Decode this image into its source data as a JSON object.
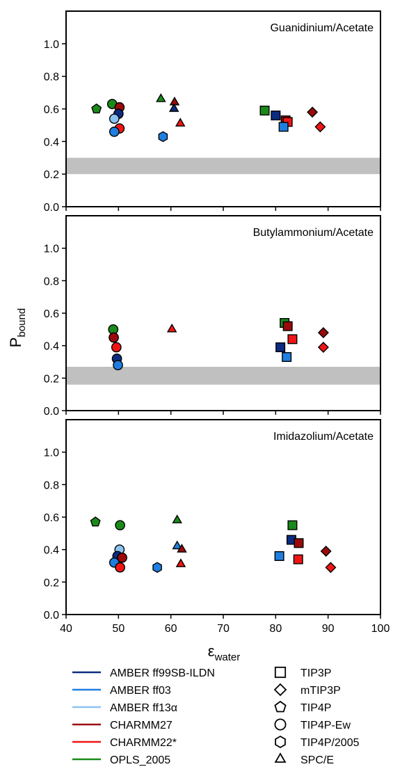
{
  "chart_data": [
    {
      "type": "scatter",
      "title": "Guanidinium/Acetate",
      "xlim": [
        40,
        100
      ],
      "ylim": [
        0,
        1.2
      ],
      "band": [
        0.2,
        0.3
      ],
      "points": [
        {
          "x": 45.8,
          "y": 0.6,
          "force_field": "OPLS_2005",
          "water_model": "TIP4P"
        },
        {
          "x": 48.8,
          "y": 0.63,
          "force_field": "OPLS_2005",
          "water_model": "TIP4P-Ew"
        },
        {
          "x": 50.2,
          "y": 0.61,
          "force_field": "CHARMM27",
          "water_model": "TIP4P-Ew"
        },
        {
          "x": 50.0,
          "y": 0.57,
          "force_field": "AMBER ff99SB-ILDN",
          "water_model": "TIP4P-Ew"
        },
        {
          "x": 49.2,
          "y": 0.54,
          "force_field": "AMBER ff13α",
          "water_model": "TIP4P-Ew"
        },
        {
          "x": 50.2,
          "y": 0.48,
          "force_field": "CHARMM22*",
          "water_model": "TIP4P-Ew"
        },
        {
          "x": 49.2,
          "y": 0.46,
          "force_field": "AMBER ff03",
          "water_model": "TIP4P-Ew"
        },
        {
          "x": 58.5,
          "y": 0.43,
          "force_field": "AMBER ff03",
          "water_model": "TIP4P/2005"
        },
        {
          "x": 58.1,
          "y": 0.66,
          "force_field": "OPLS_2005",
          "water_model": "SPC/E"
        },
        {
          "x": 60.7,
          "y": 0.64,
          "force_field": "CHARMM27",
          "water_model": "SPC/E"
        },
        {
          "x": 60.6,
          "y": 0.6,
          "force_field": "AMBER ff99SB-ILDN",
          "water_model": "SPC/E"
        },
        {
          "x": 61.8,
          "y": 0.51,
          "force_field": "CHARMM22*",
          "water_model": "SPC/E"
        },
        {
          "x": 77.9,
          "y": 0.59,
          "force_field": "OPLS_2005",
          "water_model": "TIP3P"
        },
        {
          "x": 80.0,
          "y": 0.56,
          "force_field": "AMBER ff99SB-ILDN",
          "water_model": "TIP3P"
        },
        {
          "x": 81.9,
          "y": 0.53,
          "force_field": "CHARMM27",
          "water_model": "TIP3P"
        },
        {
          "x": 82.3,
          "y": 0.52,
          "force_field": "CHARMM22*",
          "water_model": "TIP3P"
        },
        {
          "x": 81.5,
          "y": 0.49,
          "force_field": "AMBER ff03",
          "water_model": "TIP3P"
        },
        {
          "x": 87.0,
          "y": 0.58,
          "force_field": "CHARMM27",
          "water_model": "mTIP3P"
        },
        {
          "x": 88.5,
          "y": 0.49,
          "force_field": "CHARMM22*",
          "water_model": "mTIP3P"
        }
      ]
    },
    {
      "type": "scatter",
      "title": "Butylammonium/Acetate",
      "xlim": [
        40,
        100
      ],
      "ylim": [
        0,
        1.2
      ],
      "band": [
        0.16,
        0.27
      ],
      "points": [
        {
          "x": 49.0,
          "y": 0.5,
          "force_field": "OPLS_2005",
          "water_model": "TIP4P-Ew"
        },
        {
          "x": 49.1,
          "y": 0.45,
          "force_field": "CHARMM27",
          "water_model": "TIP4P-Ew"
        },
        {
          "x": 49.6,
          "y": 0.39,
          "force_field": "CHARMM22*",
          "water_model": "TIP4P-Ew"
        },
        {
          "x": 49.7,
          "y": 0.32,
          "force_field": "AMBER ff99SB-ILDN",
          "water_model": "TIP4P-Ew"
        },
        {
          "x": 49.9,
          "y": 0.28,
          "force_field": "AMBER ff03",
          "water_model": "TIP4P-Ew"
        },
        {
          "x": 60.2,
          "y": 0.5,
          "force_field": "CHARMM22*",
          "water_model": "SPC/E"
        },
        {
          "x": 81.7,
          "y": 0.54,
          "force_field": "OPLS_2005",
          "water_model": "TIP3P"
        },
        {
          "x": 82.3,
          "y": 0.52,
          "force_field": "CHARMM27",
          "water_model": "TIP3P"
        },
        {
          "x": 80.9,
          "y": 0.39,
          "force_field": "AMBER ff99SB-ILDN",
          "water_model": "TIP3P"
        },
        {
          "x": 83.2,
          "y": 0.44,
          "force_field": "CHARMM22*",
          "water_model": "TIP3P"
        },
        {
          "x": 82.1,
          "y": 0.33,
          "force_field": "AMBER ff03",
          "water_model": "TIP3P"
        },
        {
          "x": 89.1,
          "y": 0.48,
          "force_field": "CHARMM27",
          "water_model": "mTIP3P"
        },
        {
          "x": 89.1,
          "y": 0.39,
          "force_field": "CHARMM22*",
          "water_model": "mTIP3P"
        }
      ]
    },
    {
      "type": "scatter",
      "title": "Imidazolium/Acetate",
      "xlim": [
        40,
        100
      ],
      "ylim": [
        0,
        1.2
      ],
      "xlabel": "εwater",
      "points": [
        {
          "x": 45.6,
          "y": 0.57,
          "force_field": "OPLS_2005",
          "water_model": "TIP4P"
        },
        {
          "x": 50.3,
          "y": 0.55,
          "force_field": "OPLS_2005",
          "water_model": "TIP4P-Ew"
        },
        {
          "x": 50.2,
          "y": 0.4,
          "force_field": "AMBER ff13α",
          "water_model": "TIP4P-Ew"
        },
        {
          "x": 49.8,
          "y": 0.36,
          "force_field": "AMBER ff99SB-ILDN",
          "water_model": "TIP4P-Ew"
        },
        {
          "x": 50.7,
          "y": 0.35,
          "force_field": "CHARMM27",
          "water_model": "TIP4P-Ew"
        },
        {
          "x": 49.2,
          "y": 0.32,
          "force_field": "AMBER ff03",
          "water_model": "TIP4P-Ew"
        },
        {
          "x": 50.3,
          "y": 0.29,
          "force_field": "CHARMM22*",
          "water_model": "TIP4P-Ew"
        },
        {
          "x": 57.4,
          "y": 0.29,
          "force_field": "AMBER ff03",
          "water_model": "TIP4P/2005"
        },
        {
          "x": 61.2,
          "y": 0.58,
          "force_field": "OPLS_2005",
          "water_model": "SPC/E"
        },
        {
          "x": 61.2,
          "y": 0.42,
          "force_field": "AMBER ff03",
          "water_model": "SPC/E"
        },
        {
          "x": 62.1,
          "y": 0.4,
          "force_field": "CHARMM27",
          "water_model": "SPC/E"
        },
        {
          "x": 61.9,
          "y": 0.31,
          "force_field": "CHARMM22*",
          "water_model": "SPC/E"
        },
        {
          "x": 83.2,
          "y": 0.55,
          "force_field": "OPLS_2005",
          "water_model": "TIP3P"
        },
        {
          "x": 83.0,
          "y": 0.46,
          "force_field": "AMBER ff99SB-ILDN",
          "water_model": "TIP3P"
        },
        {
          "x": 84.4,
          "y": 0.44,
          "force_field": "CHARMM27",
          "water_model": "TIP3P"
        },
        {
          "x": 80.7,
          "y": 0.36,
          "force_field": "AMBER ff03",
          "water_model": "TIP3P"
        },
        {
          "x": 84.3,
          "y": 0.34,
          "force_field": "CHARMM22*",
          "water_model": "TIP3P"
        },
        {
          "x": 89.6,
          "y": 0.39,
          "force_field": "CHARMM27",
          "water_model": "mTIP3P"
        },
        {
          "x": 90.5,
          "y": 0.29,
          "force_field": "CHARMM22*",
          "water_model": "mTIP3P"
        }
      ]
    }
  ],
  "axes": {
    "ylabel_main": "P",
    "ylabel_sub": "bound",
    "xlabel_main": "ε",
    "xlabel_sub": "water",
    "x_ticks": [
      "40",
      "50",
      "60",
      "70",
      "80",
      "90",
      "100"
    ],
    "y_ticks": [
      "0.0",
      "0.2",
      "0.4",
      "0.6",
      "0.8",
      "1.0"
    ]
  },
  "legend_force_fields": [
    {
      "label": "AMBER ff99SB-ILDN",
      "color": "#0b2c80"
    },
    {
      "label": "AMBER ff03",
      "color": "#1f7fe0"
    },
    {
      "label": "AMBER ff13α",
      "color": "#8cc2f2"
    },
    {
      "label": "CHARMM27",
      "color": "#9b0a0a"
    },
    {
      "label": "CHARMM22*",
      "color": "#f01515"
    },
    {
      "label": "OPLS_2005",
      "color": "#1a8a1a"
    }
  ],
  "legend_water_models": [
    {
      "label": "TIP3P",
      "shape": "square"
    },
    {
      "label": "mTIP3P",
      "shape": "diamond"
    },
    {
      "label": "TIP4P",
      "shape": "pentagon"
    },
    {
      "label": "TIP4P-Ew",
      "shape": "circle"
    },
    {
      "label": "TIP4P/2005",
      "shape": "hexagon"
    },
    {
      "label": "SPC/E",
      "shape": "triangle"
    }
  ],
  "band_color": "#c0c0c0"
}
